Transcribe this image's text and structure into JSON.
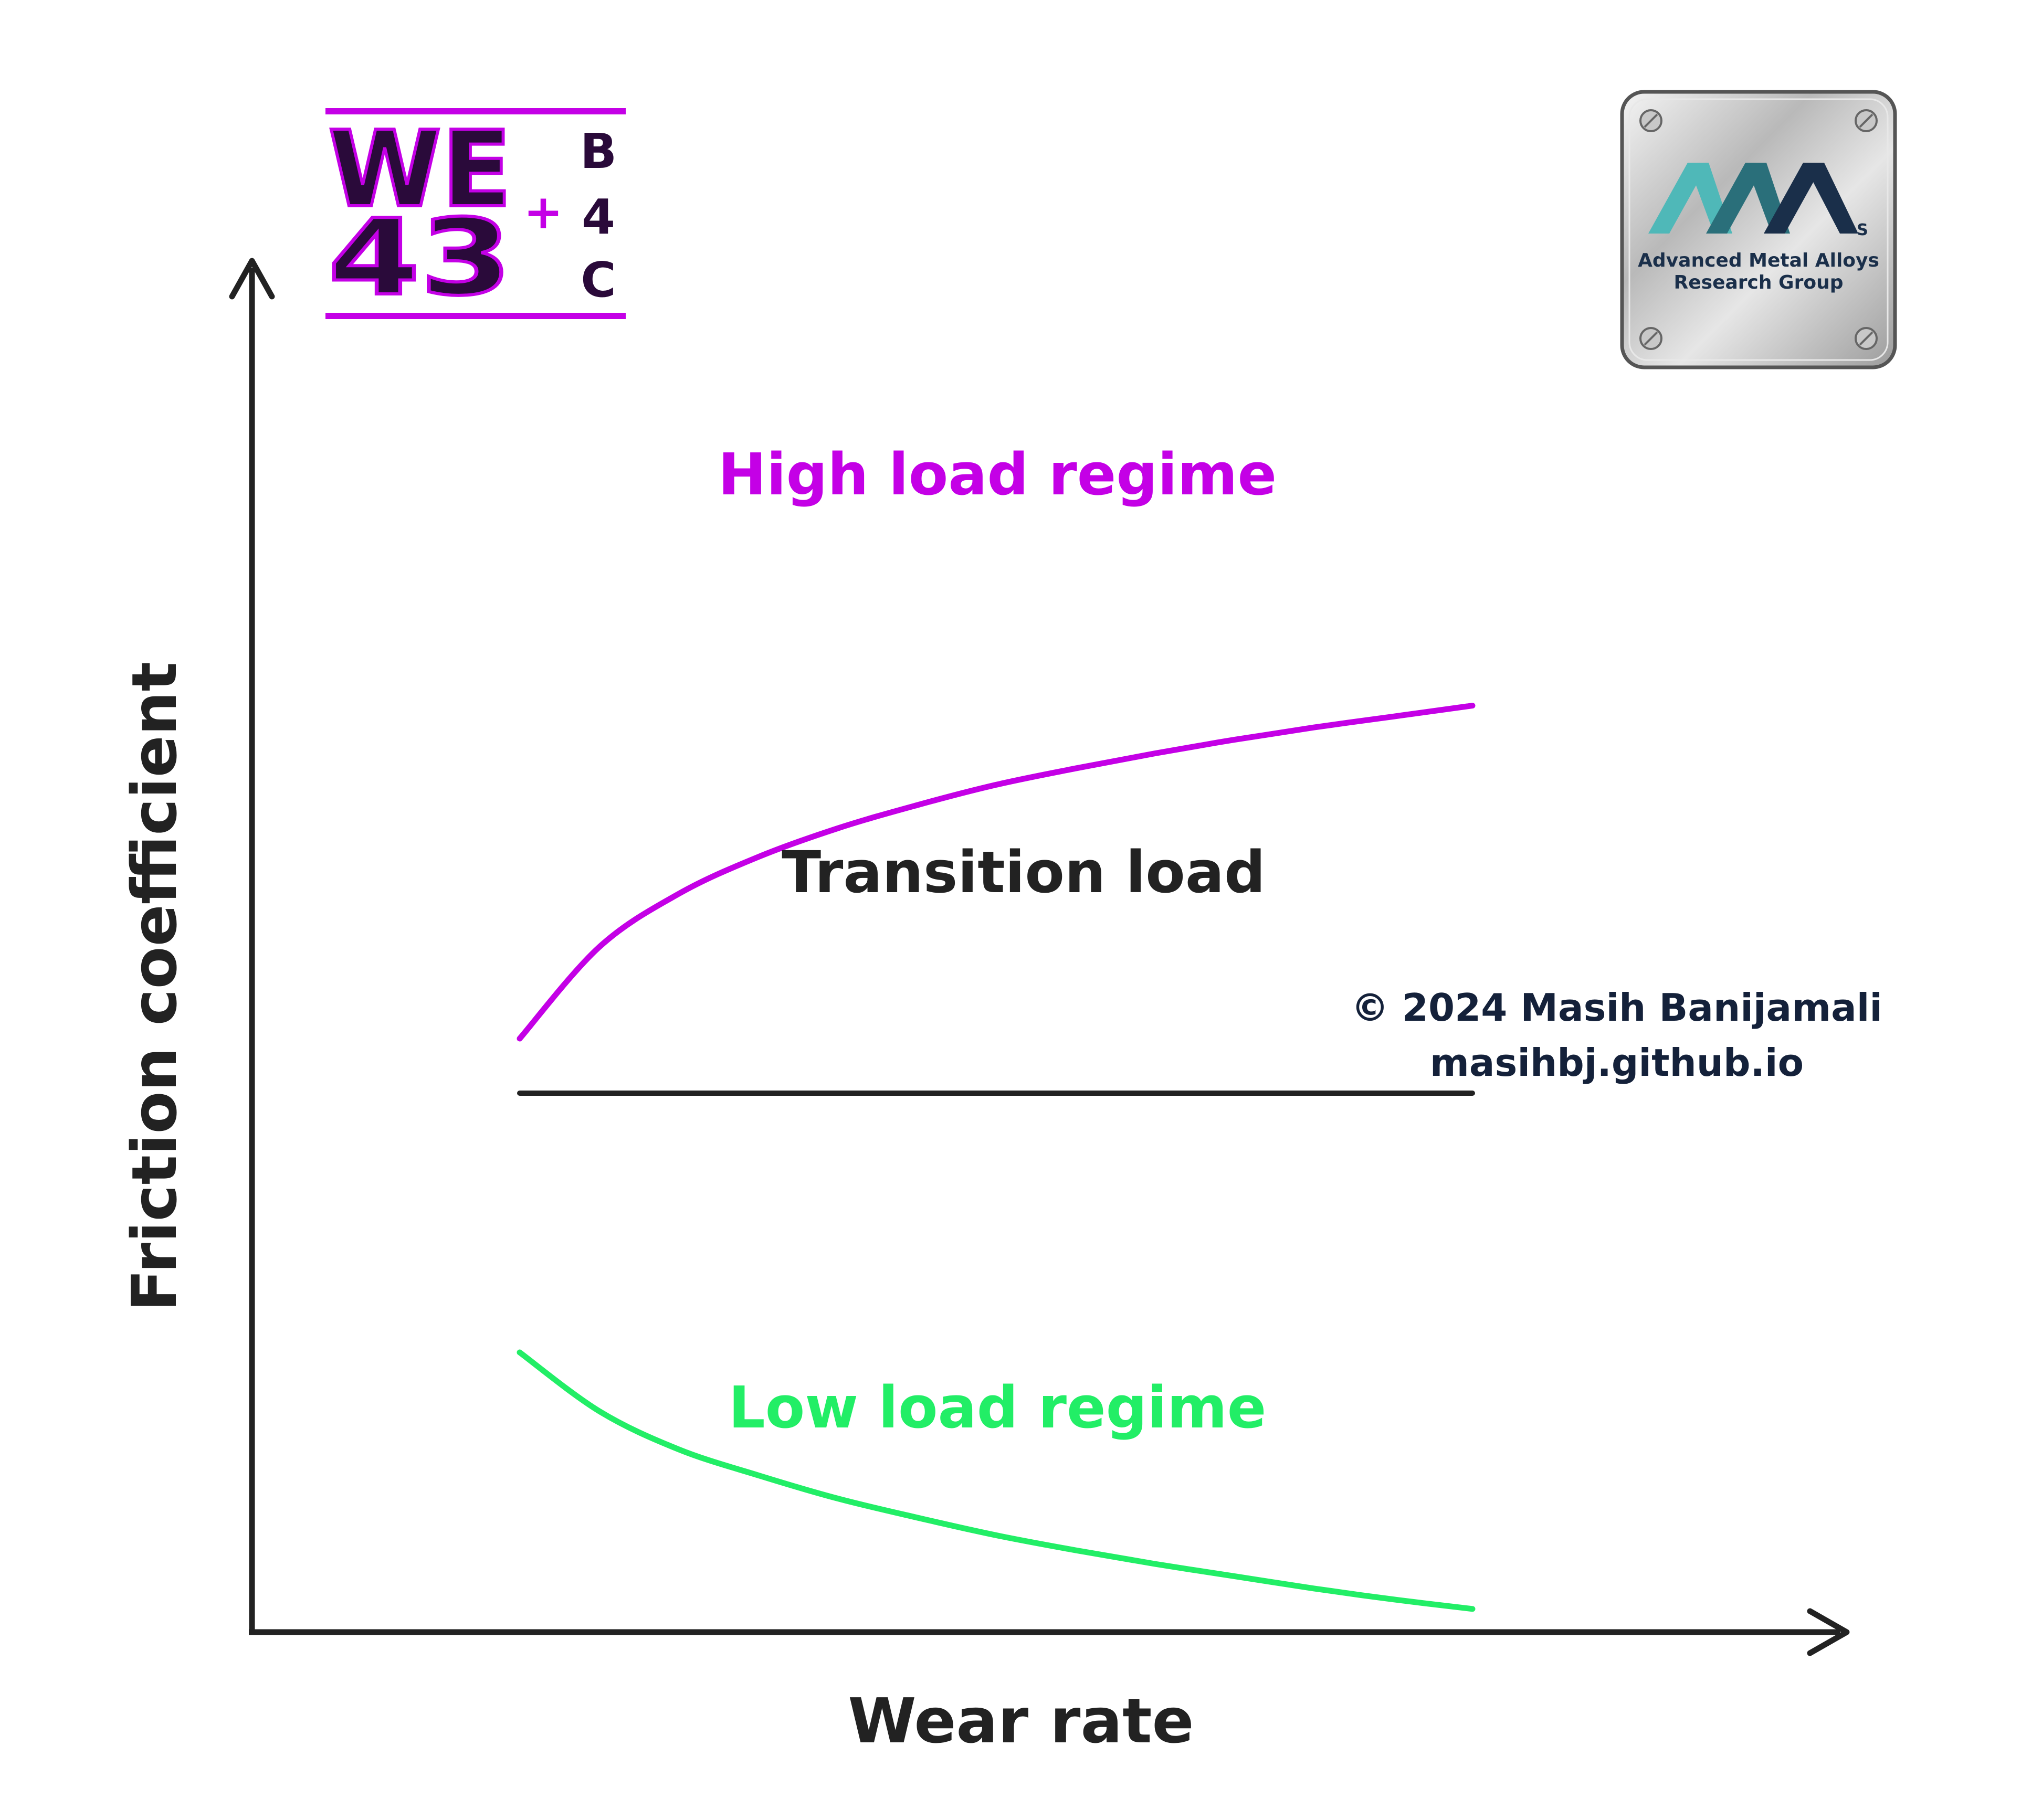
{
  "chart_data": {
    "type": "line",
    "title": "",
    "xlabel": "Wear rate",
    "ylabel": "Friction coefficient",
    "xlim": [
      0,
      10
    ],
    "ylim": [
      0,
      10
    ],
    "grid": false,
    "legend": "none",
    "axis_color": "#222222",
    "series": [
      {
        "name": "High load regime",
        "color": "#c400e6",
        "x": [
          0.0,
          0.5,
          1.0,
          1.5,
          2.0,
          2.5,
          3.0,
          3.5,
          4.0,
          4.5,
          5.0,
          5.5,
          6.0
        ],
        "y": [
          4.35,
          5.02,
          5.41,
          5.68,
          5.89,
          6.06,
          6.21,
          6.33,
          6.44,
          6.54,
          6.63,
          6.71,
          6.79
        ]
      },
      {
        "name": "Transition load",
        "color": "#222222",
        "x": [
          0.0,
          6.0
        ],
        "y": [
          3.95,
          3.95
        ]
      },
      {
        "name": "Low load regime",
        "color": "#22ee66",
        "x": [
          0.0,
          0.5,
          1.0,
          1.5,
          2.0,
          2.5,
          3.0,
          3.5,
          4.0,
          4.5,
          5.0,
          5.5,
          6.0
        ],
        "y": [
          2.05,
          1.62,
          1.34,
          1.15,
          0.98,
          0.84,
          0.71,
          0.6,
          0.5,
          0.41,
          0.32,
          0.24,
          0.17
        ]
      }
    ]
  },
  "copyright": {
    "line1": "© 2024 Masih Banijamali",
    "line2": "masihbj.github.io"
  },
  "logo_left": {
    "text_top": "WE",
    "text_bottom": "43",
    "plus": "+",
    "side_chars": [
      "B",
      "4",
      "C"
    ],
    "color_dark": "#2a0a3a",
    "color_accent": "#c400e6"
  },
  "logo_right": {
    "line1": "Advanced Metal Alloys",
    "line2": "Research Group",
    "sub_letter": "S",
    "color_teal": "#4fb8b8",
    "color_navy": "#1a2f4a"
  }
}
